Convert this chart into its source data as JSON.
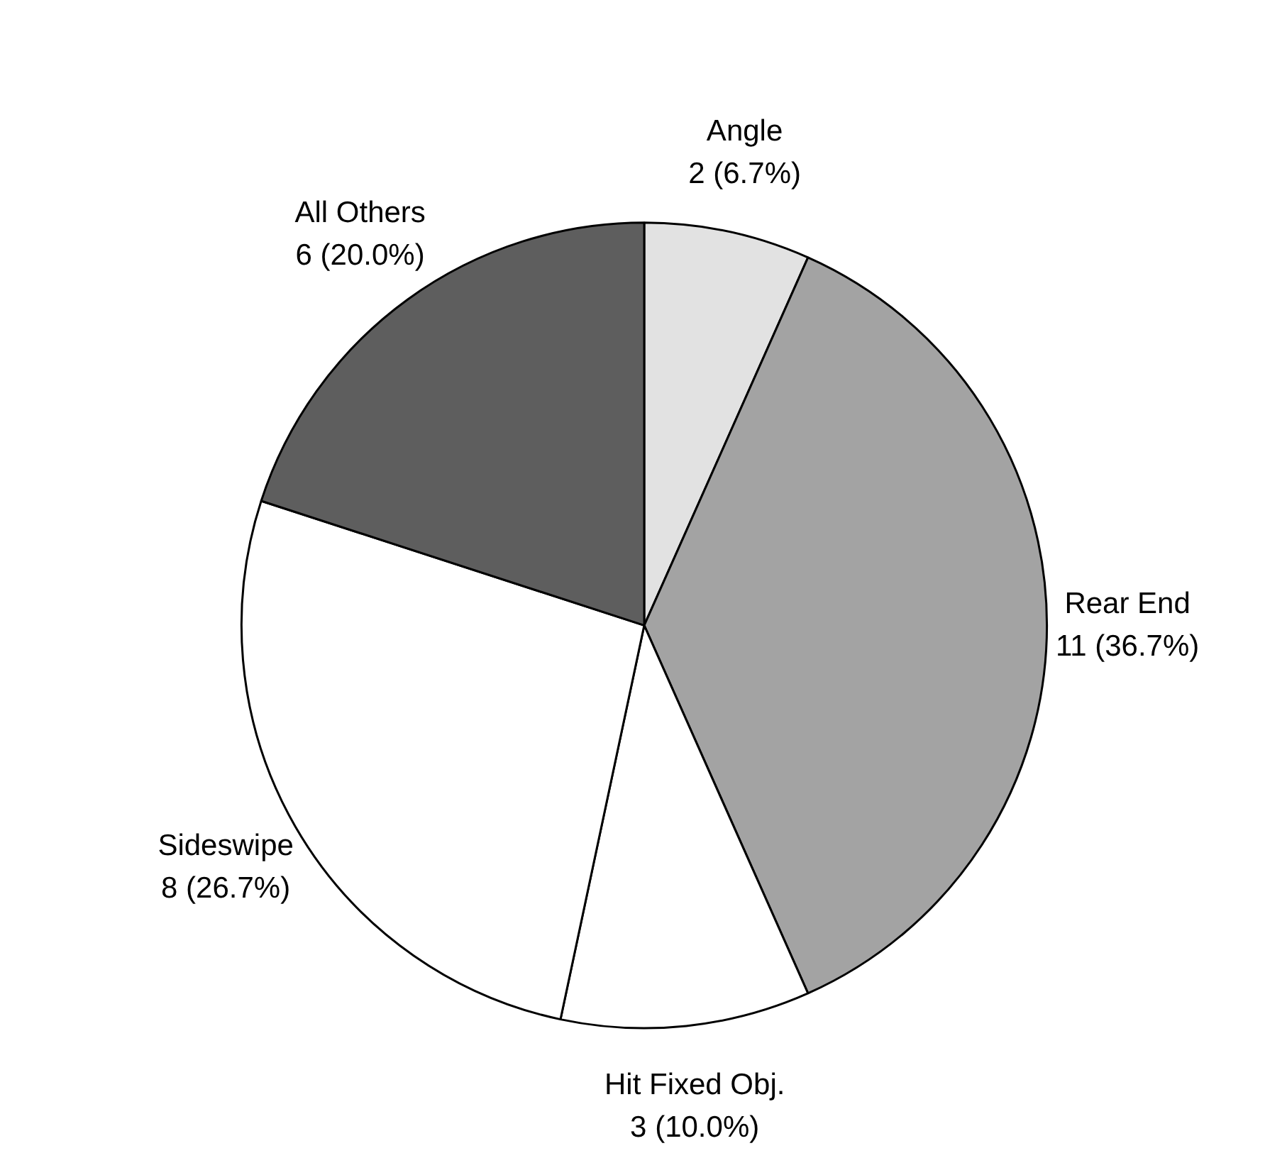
{
  "chart_data": {
    "type": "pie",
    "categories": [
      "Angle",
      "Rear End",
      "Hit Fixed Obj.",
      "Sideswipe",
      "All Others"
    ],
    "values": [
      2,
      11,
      3,
      8,
      6
    ],
    "value_labels": [
      "2 (6.7%)",
      "11 (36.7%)",
      "3 (10.0%)",
      "8 (26.7%)",
      "6 (20.0%)"
    ],
    "colors": [
      "#e2e2e2",
      "#a3a3a3",
      "#ffffff",
      "#ffffff",
      "#5e5e5e"
    ]
  }
}
